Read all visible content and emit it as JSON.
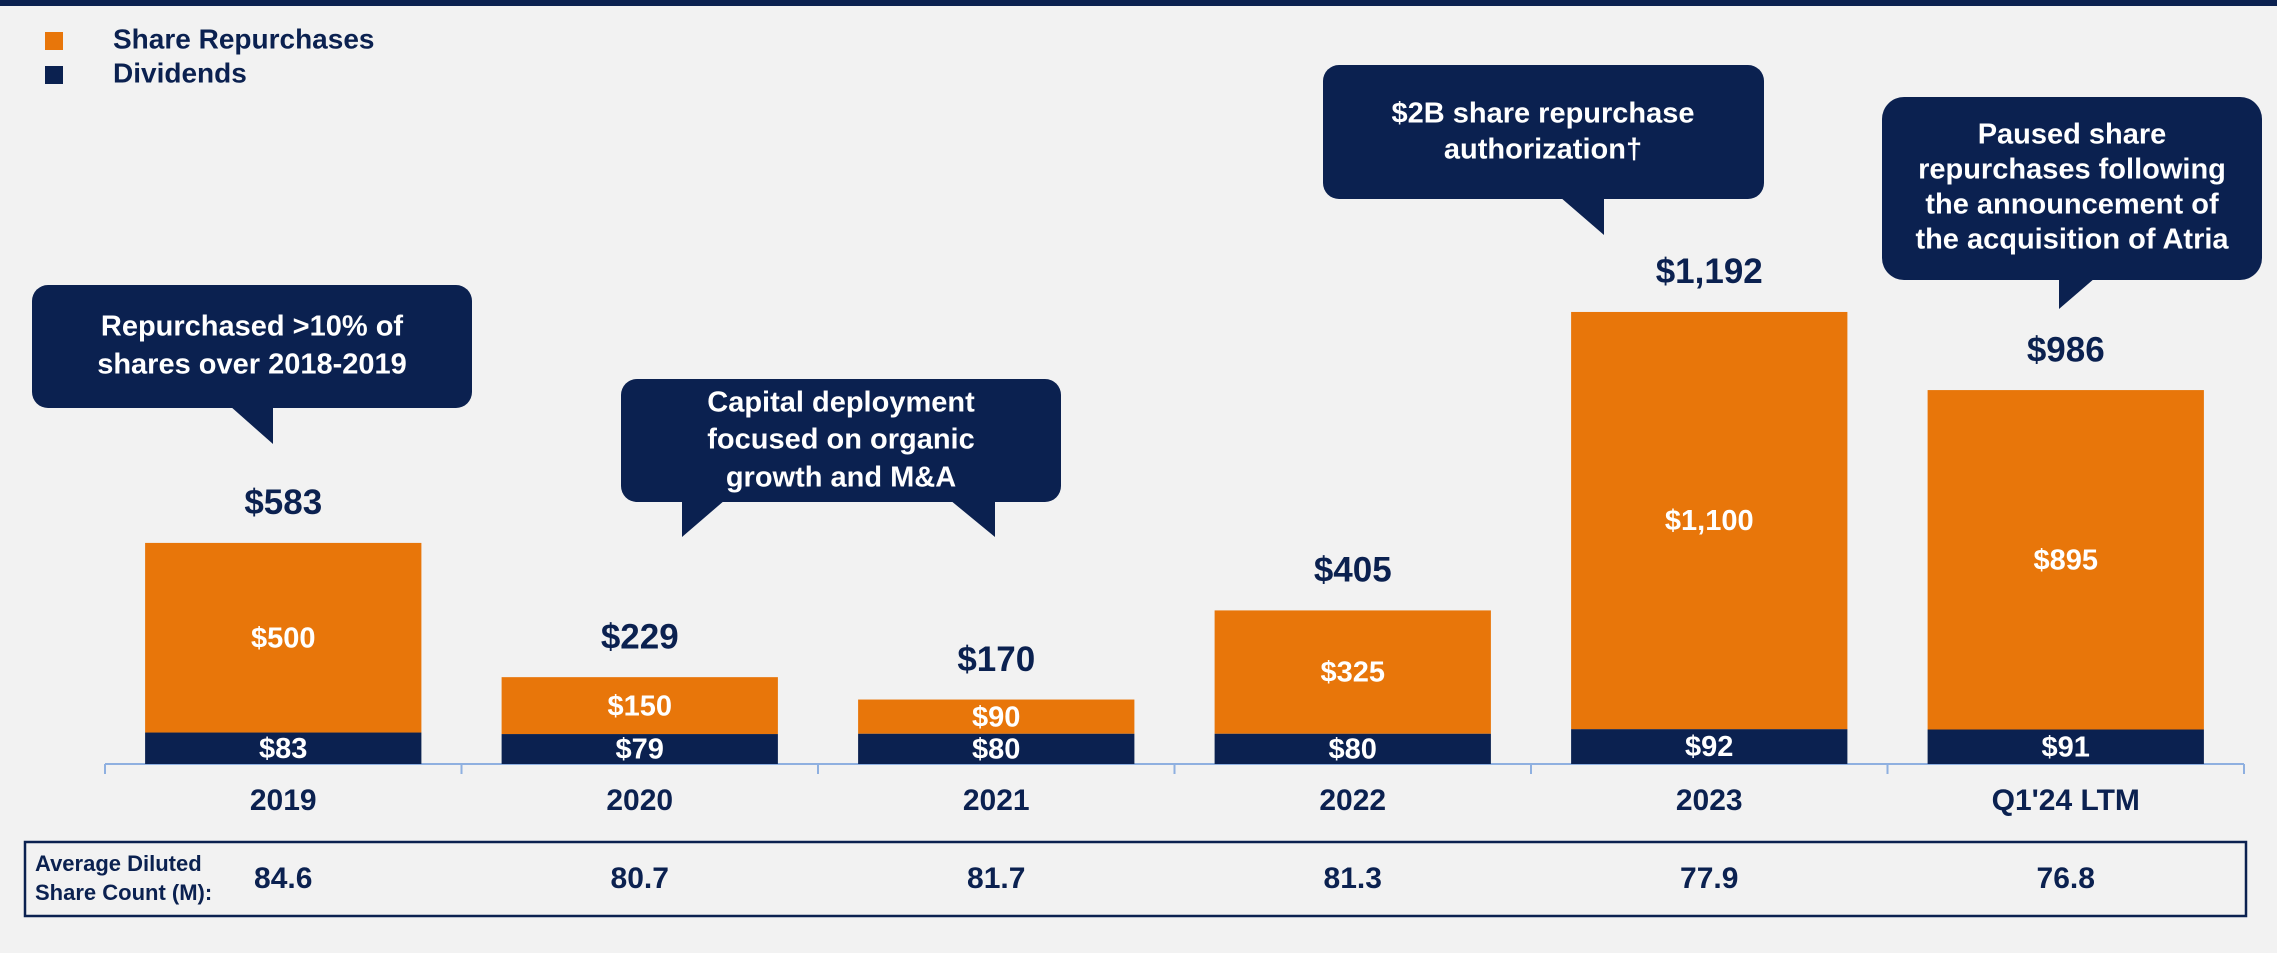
{
  "chart_data": {
    "type": "stacked_bar",
    "categories": [
      "2019",
      "2020",
      "2021",
      "2022",
      "2023",
      "Q1'24 LTM"
    ],
    "series": [
      {
        "name": "Dividends",
        "color": "#0b2150",
        "values": [
          83,
          79,
          80,
          80,
          92,
          91
        ],
        "value_labels": [
          "$83",
          "$79",
          "$80",
          "$80",
          "$92",
          "$91"
        ]
      },
      {
        "name": "Share Repurchases",
        "color": "#e8760a",
        "values": [
          500,
          150,
          90,
          325,
          1100,
          895
        ],
        "value_labels": [
          "$500",
          "$150",
          "$90",
          "$325",
          "$1,100",
          "$895"
        ]
      }
    ],
    "totals": [
      583,
      229,
      170,
      405,
      1192,
      986
    ],
    "total_labels": [
      "$583",
      "$229",
      "$170",
      "$405",
      "$1,192",
      "$986"
    ],
    "ylim": [
      0,
      1300
    ],
    "legend": "top-left",
    "annotations": [
      {
        "lines": [
          "Repurchased >10% of",
          "shares over 2018-2019"
        ]
      },
      {
        "lines": [
          "Capital deployment",
          "focused on organic",
          "growth and M&A"
        ]
      },
      {
        "lines": [
          "$2B share repurchase",
          "authorization†"
        ]
      },
      {
        "lines": [
          "Paused share",
          "repurchases following",
          "the announcement of",
          "the acquisition of Atria"
        ]
      }
    ],
    "share_count": {
      "label_lines": [
        "Average Diluted",
        "Share Count (M):"
      ],
      "values": [
        84.6,
        80.7,
        81.7,
        81.3,
        77.9,
        76.8
      ]
    }
  }
}
